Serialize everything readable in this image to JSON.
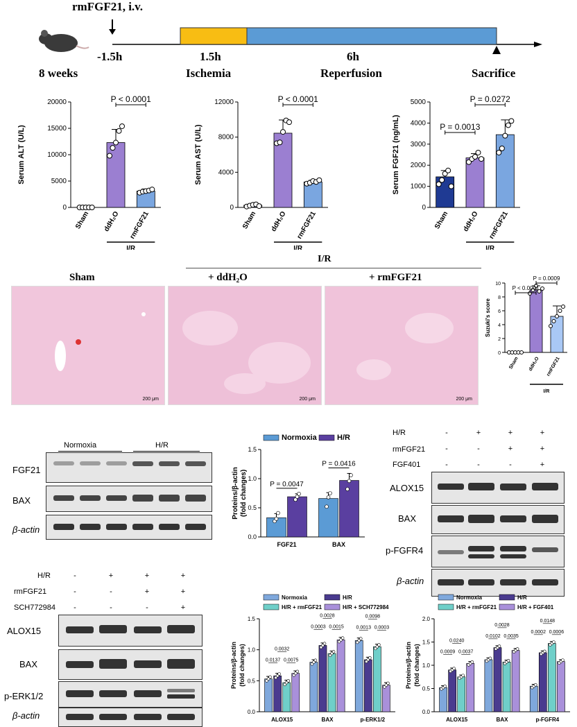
{
  "timeline": {
    "injection": "rmFGF21, i.v.",
    "t1": "-1.5h",
    "t2": "1.5h",
    "t3": "6h",
    "age": "8 weeks",
    "ischemia": "Ischemia",
    "reperfusion": "Reperfusion",
    "sacrifice": "Sacrifice",
    "ischemia_color": "#f8bd13",
    "reperfusion_color": "#5b9bd5"
  },
  "histology": {
    "group_label": "I/R",
    "panels": [
      "Sham",
      "+ ddH₂O",
      "+ rmFGF21"
    ],
    "scale_bar": "200 μm"
  },
  "blot_a": {
    "groups": [
      "Normoxia",
      "H/R"
    ],
    "rows": [
      "FGF21",
      "BAX",
      "β-actin"
    ]
  },
  "blot_b": {
    "conditions": [
      "H/R",
      "rmFGF21",
      "FGF401"
    ],
    "signs": [
      [
        "-",
        "+",
        "+",
        "+"
      ],
      [
        "-",
        "-",
        "+",
        "+"
      ],
      [
        "-",
        "-",
        "-",
        "+"
      ]
    ],
    "rows": [
      "ALOX15",
      "BAX",
      "p-FGFR4",
      "β-actin"
    ]
  },
  "blot_c": {
    "conditions": [
      "H/R",
      "rmFGF21",
      "SCH772984"
    ],
    "signs": [
      [
        "-",
        "+",
        "+",
        "+"
      ],
      [
        "-",
        "-",
        "+",
        "+"
      ],
      [
        "-",
        "-",
        "-",
        "+"
      ]
    ],
    "rows": [
      "ALOX15",
      "BAX",
      "p-ERK1/2",
      "β-actin"
    ]
  },
  "chart_data": [
    {
      "type": "bar",
      "ylabel": "Serum ALT (U/L)",
      "categories": [
        "Sham",
        "ddH₂O",
        "rmFGF21"
      ],
      "values": [
        0,
        12300,
        3100
      ],
      "errors": [
        0,
        2500,
        400
      ],
      "points": [
        [
          0,
          0,
          0,
          0,
          0
        ],
        [
          9800,
          11300,
          12300,
          14500,
          15400
        ],
        [
          2800,
          3000,
          3100,
          3200,
          3400
        ]
      ],
      "yticks": [
        0,
        5000,
        10000,
        15000,
        20000
      ],
      "ylim": [
        0,
        20000
      ],
      "colors": [
        "#1f3a93",
        "#9b7fd1",
        "#7aa6e0"
      ],
      "group_label": "I/R",
      "annotations": [
        {
          "text": "P < 0.0001",
          "from": 1,
          "to": 2
        }
      ]
    },
    {
      "type": "bar",
      "ylabel": "Serum AST (U/L)",
      "categories": [
        "Sham",
        "ddH₂O",
        "rmFGF21"
      ],
      "values": [
        250,
        8450,
        2900
      ],
      "errors": [
        150,
        1500,
        200
      ],
      "points": [
        [
          100,
          200,
          300,
          350,
          150
        ],
        [
          7300,
          7400,
          8600,
          9900,
          9700
        ],
        [
          2700,
          2800,
          3000,
          2900,
          3100
        ]
      ],
      "yticks": [
        0,
        4000,
        8000,
        12000
      ],
      "ylim": [
        0,
        12000
      ],
      "colors": [
        "#1f3a93",
        "#9b7fd1",
        "#7aa6e0"
      ],
      "group_label": "I/R",
      "annotations": [
        {
          "text": "P < 0.0001",
          "from": 1,
          "to": 2
        }
      ]
    },
    {
      "type": "bar",
      "ylabel": "Serum FGF21 (ng/mL)",
      "categories": [
        "Sham",
        "ddH₂O",
        "rmFGF21"
      ],
      "values": [
        1450,
        2350,
        3450
      ],
      "errors": [
        300,
        200,
        700
      ],
      "points": [
        [
          1100,
          1300,
          1600,
          1750,
          1000
        ],
        [
          2150,
          2300,
          2400,
          2600,
          2300
        ],
        [
          2600,
          2800,
          3400,
          3900,
          4100
        ]
      ],
      "yticks": [
        0,
        1000,
        2000,
        3000,
        4000,
        5000
      ],
      "ylim": [
        0,
        5000
      ],
      "colors": [
        "#1f3a93",
        "#9b7fd1",
        "#7aa6e0"
      ],
      "group_label": "I/R",
      "annotations": [
        {
          "text": "P = 0.0013",
          "from": 0,
          "to": 1
        },
        {
          "text": "P = 0.0272",
          "from": 1,
          "to": 2
        }
      ]
    },
    {
      "type": "bar",
      "ylabel": "Suzuki's score",
      "categories": [
        "Sham",
        "ddH₂O",
        "rmFGF21"
      ],
      "values": [
        0,
        9,
        5.2
      ],
      "errors": [
        0,
        0.6,
        1.5
      ],
      "points": [
        [
          0,
          0,
          0,
          0,
          0
        ],
        [
          8.5,
          9,
          9.6,
          8.8,
          9.2
        ],
        [
          3.8,
          4.5,
          5.2,
          6,
          6.6
        ]
      ],
      "yticks": [
        0,
        2,
        4,
        6,
        8,
        10
      ],
      "ylim": [
        0,
        10
      ],
      "colors": [
        "#1f3a93",
        "#9b7fd1",
        "#a9c8f5"
      ],
      "group_label": "I/R",
      "annotations": [
        {
          "text": "P < 0.0001",
          "from": 0,
          "to": 1
        },
        {
          "text": "P = 0.0009",
          "from": 1,
          "to": 2
        }
      ]
    },
    {
      "type": "bar",
      "ylabel": "Proteins/β-actin (fold changes)",
      "categories": [
        "FGF21",
        "BAX"
      ],
      "series": [
        {
          "name": "Normoxia",
          "values": [
            0.33,
            0.66
          ],
          "errors": [
            0.07,
            0.1
          ],
          "points": [
            [
              0.27,
              0.31,
              0.41
            ],
            [
              0.52,
              0.68,
              0.75
            ]
          ]
        },
        {
          "name": "H/R",
          "values": [
            0.69,
            0.97
          ],
          "errors": [
            0.05,
            0.12
          ],
          "points": [
            [
              0.64,
              0.69,
              0.74
            ],
            [
              0.82,
              0.96,
              1.06
            ]
          ]
        }
      ],
      "colors": [
        "#5b9bd5",
        "#5a3fa0"
      ],
      "yticks": [
        0,
        0.5,
        1,
        1.5
      ],
      "ylim": [
        0,
        1.5
      ],
      "legend": "top",
      "annotations": [
        {
          "text": "P = 0.0047",
          "cat": 0
        },
        {
          "text": "P = 0.0416",
          "cat": 1
        }
      ]
    },
    {
      "type": "bar",
      "ylabel": "Proteins/β-actin (fold changes)",
      "categories": [
        "ALOX15",
        "BAX",
        "p-ERK1/2"
      ],
      "series": [
        {
          "name": "Normoxia",
          "values": [
            0.53,
            0.8,
            1.15
          ]
        },
        {
          "name": "H/R",
          "values": [
            0.58,
            1.07,
            0.84
          ]
        },
        {
          "name": "H/R + rmFGF21",
          "values": [
            0.47,
            0.94,
            1.05
          ]
        },
        {
          "name": "H/R + SCH772984",
          "values": [
            0.62,
            1.16,
            0.43
          ]
        }
      ],
      "colors": [
        "#7fa8dc",
        "#4a3b8f",
        "#6fcfc9",
        "#a990da"
      ],
      "yticks": [
        0,
        0.5,
        1,
        1.5
      ],
      "ylim": [
        0,
        1.5
      ],
      "legend": "top",
      "annotations": [
        {
          "cat": 0,
          "pairs": [
            [
              "0.0137",
              0,
              1
            ],
            [
              "0.0032",
              1,
              2
            ],
            [
              "0.0075",
              2,
              3
            ]
          ]
        },
        {
          "cat": 1,
          "pairs": [
            [
              "0.0003",
              0,
              1
            ],
            [
              "0.0028",
              1,
              2
            ],
            [
              "0.0015",
              2,
              3
            ]
          ]
        },
        {
          "cat": 2,
          "pairs": [
            [
              "0.0013",
              0,
              1
            ],
            [
              "0.0098",
              1,
              2
            ],
            [
              "0.0003",
              2,
              3
            ]
          ]
        }
      ]
    },
    {
      "type": "bar",
      "ylabel": "Proteins/β-actin (fold changes)",
      "categories": [
        "ALOX15",
        "BAX",
        "p-FGFR4"
      ],
      "series": [
        {
          "name": "Normoxia",
          "values": [
            0.52,
            1.12,
            0.55
          ]
        },
        {
          "name": "H/R",
          "values": [
            0.9,
            1.38,
            1.27
          ]
        },
        {
          "name": "H/R + rmFGF21",
          "values": [
            0.75,
            1.07,
            1.47
          ]
        },
        {
          "name": "H/R + FGF401",
          "values": [
            1.04,
            1.32,
            1.08
          ]
        }
      ],
      "colors": [
        "#7fa8dc",
        "#4a3b8f",
        "#6fcfc9",
        "#a990da"
      ],
      "yticks": [
        0,
        0.5,
        1,
        1.5,
        2
      ],
      "ylim": [
        0,
        2
      ],
      "legend": "top",
      "annotations": [
        {
          "cat": 0,
          "pairs": [
            [
              "0.0009",
              0,
              1
            ],
            [
              "0.0240",
              1,
              2
            ],
            [
              "0.0037",
              2,
              3
            ]
          ]
        },
        {
          "cat": 1,
          "pairs": [
            [
              "0.0102",
              0,
              1
            ],
            [
              "0.0028",
              1,
              2
            ],
            [
              "0.0035",
              2,
              3
            ]
          ]
        },
        {
          "cat": 2,
          "pairs": [
            [
              "0.0002",
              0,
              1
            ],
            [
              "0.0148",
              1,
              2
            ],
            [
              "0.0006",
              2,
              3
            ]
          ]
        }
      ]
    }
  ]
}
